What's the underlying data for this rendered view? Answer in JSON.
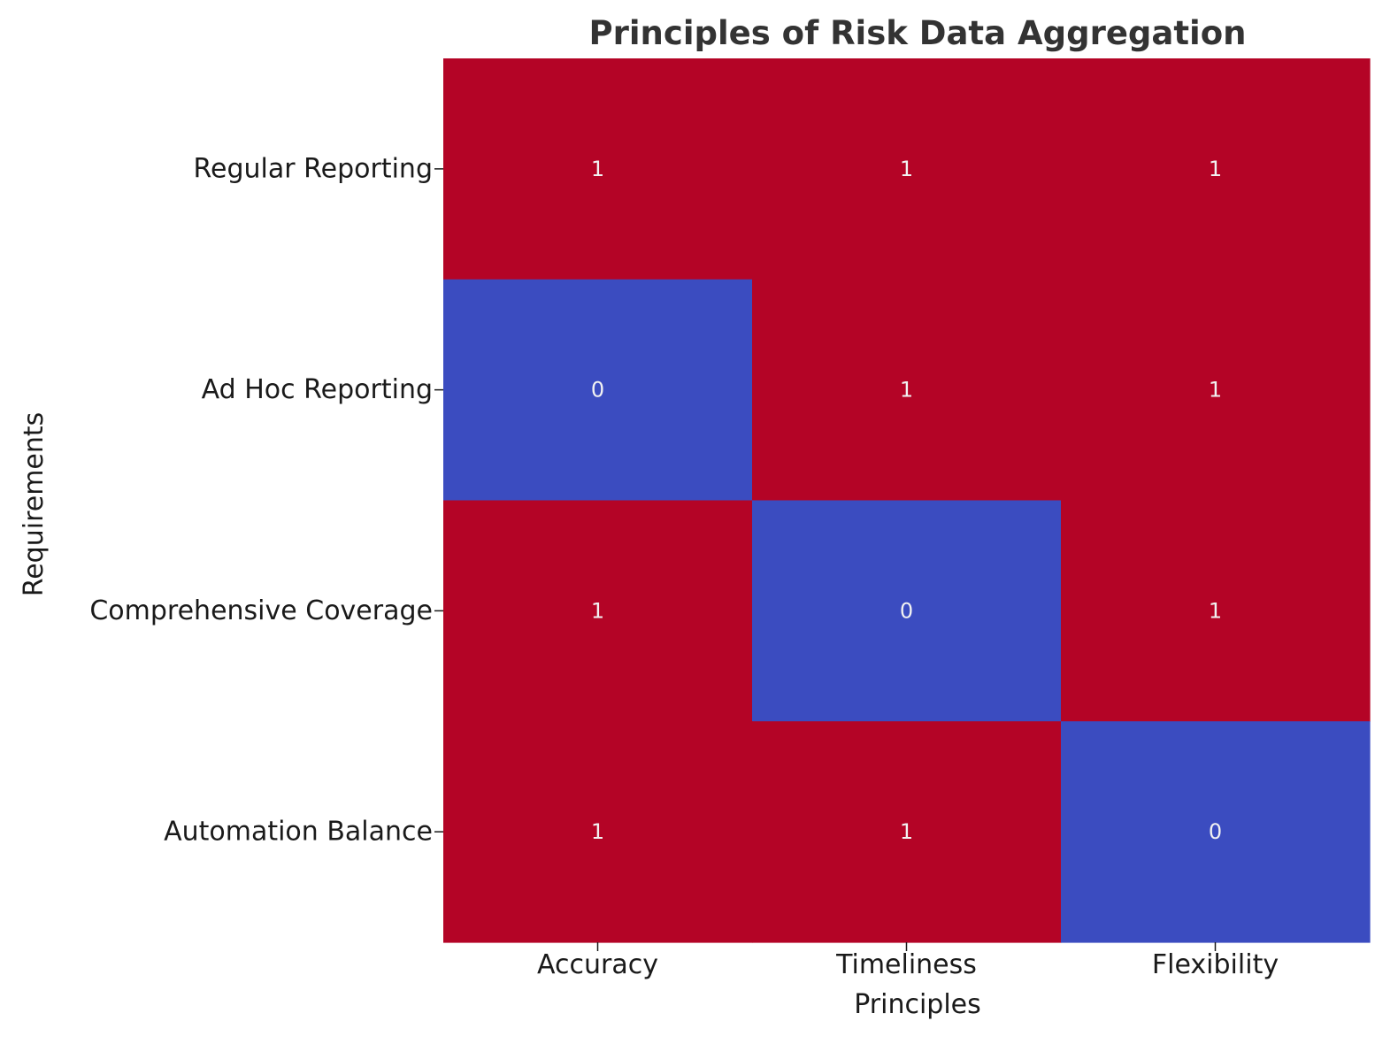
{
  "chart_data": {
    "type": "heatmap",
    "title": "Principles of Risk Data Aggregation",
    "xlabel": "Principles",
    "ylabel": "Requirements",
    "x_categories": [
      "Accuracy",
      "Timeliness",
      "Flexibility"
    ],
    "y_categories": [
      "Regular Reporting",
      "Ad Hoc Reporting",
      "Comprehensive Coverage",
      "Automation Balance"
    ],
    "values": [
      [
        1,
        1,
        1
      ],
      [
        0,
        1,
        1
      ],
      [
        1,
        0,
        1
      ],
      [
        1,
        1,
        0
      ]
    ],
    "annotations": true,
    "colorscale": {
      "low": "#3b4cc0",
      "high": "#b40426"
    },
    "vmin": 0,
    "vmax": 1
  }
}
